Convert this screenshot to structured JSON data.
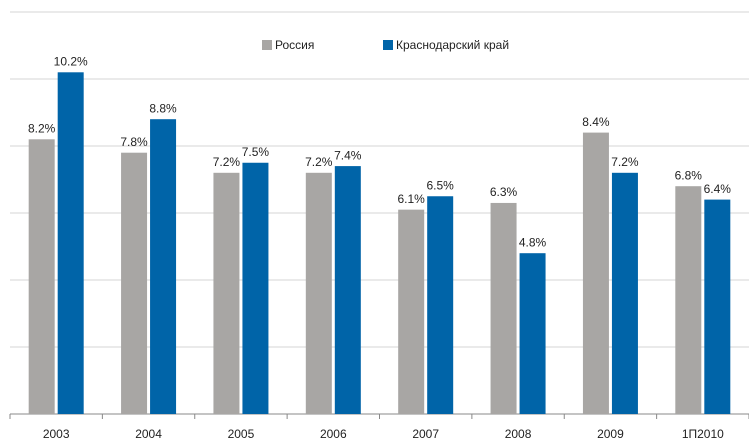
{
  "chart_data": {
    "type": "bar",
    "categories": [
      "2003",
      "2004",
      "2005",
      "2006",
      "2007",
      "2008",
      "2009",
      "1П2010"
    ],
    "series": [
      {
        "name": "Россия",
        "color": "#a8a6a4",
        "values": [
          8.2,
          7.8,
          7.2,
          7.2,
          6.1,
          6.3,
          8.4,
          6.8
        ],
        "value_labels": [
          "8.2%",
          "7.8%",
          "7.2%",
          "7.2%",
          "6.1%",
          "6.3%",
          "8.4%",
          "6.8%"
        ]
      },
      {
        "name": "Краснодарский край",
        "color": "#0064a8",
        "values": [
          10.2,
          8.8,
          7.5,
          7.4,
          6.5,
          4.8,
          7.2,
          6.4
        ],
        "value_labels": [
          "10.2%",
          "8.8%",
          "7.5%",
          "7.4%",
          "6.5%",
          "4.8%",
          "7.2%",
          "6.4%"
        ]
      }
    ],
    "ylim": [
      0,
      12
    ],
    "yticks": [
      0,
      2,
      4,
      6,
      8,
      10,
      12
    ],
    "grid": true,
    "legend": "top"
  }
}
